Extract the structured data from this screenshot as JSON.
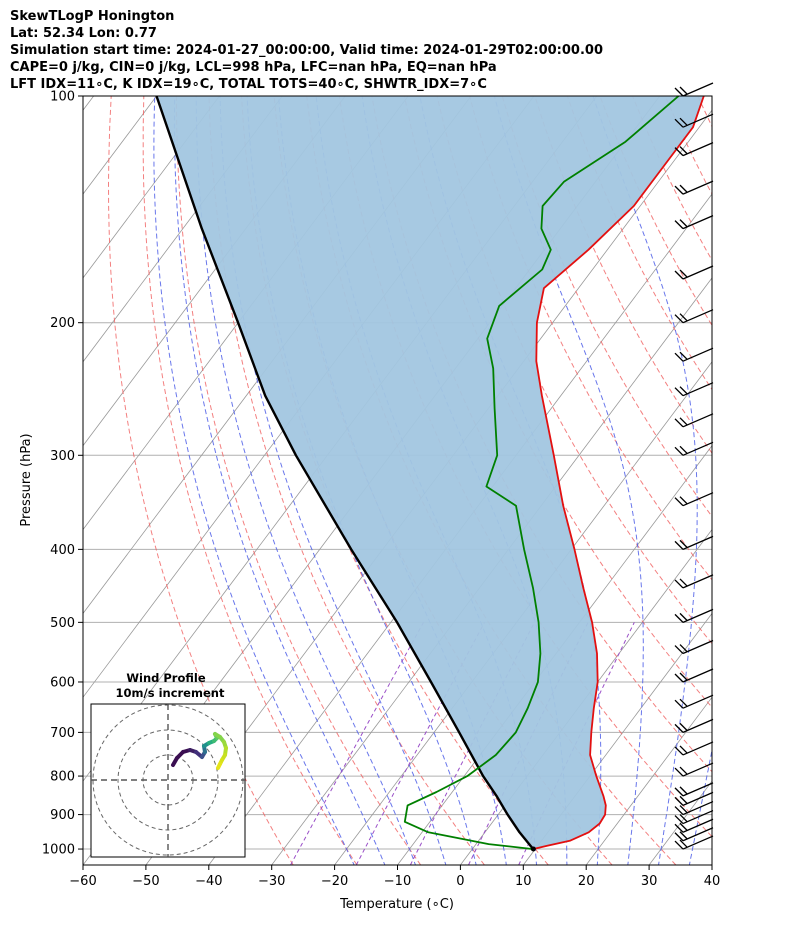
{
  "header": {
    "line1": "SkewTLogP Honington",
    "line2": "Lat: 52.34   Lon: 0.77",
    "line3": "Simulation start time: 2024-01-27_00:00:00, Valid time: 2024-01-29T02:00:00.00",
    "line4": "CAPE=0 j/kg, CIN=0 j/kg, LCL=998 hPa, LFC=nan hPa, EQ=nan hPa",
    "line5": "LFT IDX=11∘C, K IDX=19∘C, TOTAL TOTS=40∘C, SHWTR_IDX=7∘C"
  },
  "colors": {
    "temperature": "#e31010",
    "dewpoint": "#008000",
    "parcel": "#000000",
    "shade": "#a2c6e0",
    "dry_adiabat": "#f06060",
    "moist_adiabat": "#4f5fe8",
    "mixing_ratio": "#9a4fc8",
    "isotherm": "#999999"
  },
  "chart_data": {
    "type": "skewt",
    "xlabel": "Temperature (∘C)",
    "ylabel": "Pressure (hPa)",
    "xlim": [
      -60,
      40
    ],
    "ylim": [
      1050,
      100
    ],
    "x_ticks": [
      "−60",
      "−50",
      "−40",
      "−30",
      "−20",
      "−10",
      "0",
      "10",
      "20",
      "30",
      "40"
    ],
    "x_tick_values": [
      -60,
      -50,
      -40,
      -30,
      -20,
      -10,
      0,
      10,
      20,
      30,
      40
    ],
    "y_ticks": [
      "100",
      "200",
      "300",
      "400",
      "500",
      "600",
      "700",
      "800",
      "900",
      "1000"
    ],
    "y_tick_values": [
      100,
      200,
      300,
      400,
      500,
      600,
      700,
      800,
      900,
      1000
    ],
    "temperature": [
      [
        1000,
        9.7
      ],
      [
        990,
        11.5
      ],
      [
        975,
        14.5
      ],
      [
        950,
        16.5
      ],
      [
        925,
        17.2
      ],
      [
        900,
        17.0
      ],
      [
        875,
        16.0
      ],
      [
        850,
        14.5
      ],
      [
        800,
        11.0
      ],
      [
        750,
        7.5
      ],
      [
        700,
        5.0
      ],
      [
        650,
        2.5
      ],
      [
        600,
        0.0
      ],
      [
        550,
        -3.5
      ],
      [
        500,
        -8.0
      ],
      [
        450,
        -13.5
      ],
      [
        400,
        -19.5
      ],
      [
        350,
        -26.5
      ],
      [
        300,
        -34.0
      ],
      [
        250,
        -43.0
      ],
      [
        225,
        -48.0
      ],
      [
        200,
        -52.5
      ],
      [
        180,
        -55.5
      ],
      [
        160,
        -53.0
      ],
      [
        140,
        -51.0
      ],
      [
        125,
        -51.0
      ],
      [
        110,
        -51.0
      ],
      [
        100,
        -53.0
      ]
    ],
    "dewpoint": [
      [
        1000,
        9.5
      ],
      [
        985,
        2.0
      ],
      [
        950,
        -9.0
      ],
      [
        920,
        -14.0
      ],
      [
        875,
        -15.5
      ],
      [
        840,
        -12.5
      ],
      [
        800,
        -9.5
      ],
      [
        750,
        -7.5
      ],
      [
        700,
        -7.0
      ],
      [
        650,
        -8.0
      ],
      [
        600,
        -9.5
      ],
      [
        550,
        -12.5
      ],
      [
        500,
        -16.5
      ],
      [
        450,
        -21.5
      ],
      [
        400,
        -27.5
      ],
      [
        350,
        -34.0
      ],
      [
        330,
        -41.0
      ],
      [
        300,
        -43.0
      ],
      [
        260,
        -49.0
      ],
      [
        230,
        -54.0
      ],
      [
        210,
        -58.5
      ],
      [
        190,
        -60.5
      ],
      [
        170,
        -58.0
      ],
      [
        160,
        -59.0
      ],
      [
        150,
        -63.0
      ],
      [
        140,
        -65.5
      ],
      [
        130,
        -65.0
      ],
      [
        115,
        -60.0
      ],
      [
        100,
        -57.0
      ]
    ],
    "parcel": [
      [
        1000,
        9.7
      ],
      [
        998,
        9.5
      ],
      [
        950,
        5.5
      ],
      [
        900,
        1.5
      ],
      [
        850,
        -2.5
      ],
      [
        800,
        -7.0
      ],
      [
        700,
        -16.0
      ],
      [
        600,
        -26.5
      ],
      [
        500,
        -39.0
      ],
      [
        400,
        -55.0
      ],
      [
        300,
        -75.0
      ],
      [
        250,
        -87.0
      ],
      [
        200,
        -100.0
      ],
      [
        150,
        -117.0
      ],
      [
        100,
        -140.0
      ]
    ],
    "wind_barb_levels": [
      1000,
      975,
      950,
      925,
      900,
      875,
      850,
      800,
      750,
      700,
      650,
      600,
      550,
      500,
      450,
      400,
      350,
      300,
      275,
      250,
      225,
      200,
      175,
      150,
      135,
      120,
      110,
      100
    ],
    "hodograph": {
      "title": "Wind Profile",
      "subtitle": "10m/s increment"
    }
  }
}
